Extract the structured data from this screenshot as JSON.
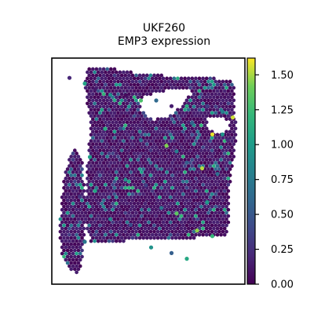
{
  "chart_data": {
    "type": "scatter",
    "subtype": "spatial-expression",
    "title_lines": [
      "UKF260",
      "EMP3 expression"
    ],
    "x_axis": {
      "ticks": false,
      "label": ""
    },
    "y_axis": {
      "ticks": false,
      "label": ""
    },
    "grid": false,
    "colorbar": {
      "colormap": "viridis",
      "range": [
        0,
        1.62
      ],
      "ticks": [
        0.0,
        0.25,
        0.5,
        0.75,
        1.0,
        1.25,
        1.5
      ],
      "tick_labels": [
        "0.00",
        "0.25",
        "0.50",
        "0.75",
        "1.00",
        "1.25",
        "1.50"
      ],
      "placement": "right"
    },
    "colors": {
      "low": "#440154",
      "mid": "#21918c",
      "high": "#fde725"
    },
    "points_sampled": true,
    "points": [
      [
        1,
        1,
        0.2
      ],
      [
        4,
        2,
        1.05
      ],
      [
        6,
        3,
        0.12
      ],
      [
        9,
        4,
        0.9
      ],
      [
        12,
        4,
        0.05
      ],
      [
        15,
        5,
        1.3
      ],
      [
        18,
        5,
        0.62
      ],
      [
        21,
        6,
        0.15
      ],
      [
        24,
        6,
        1.12
      ],
      [
        28,
        6,
        0.33
      ],
      [
        31,
        7,
        0.8
      ],
      [
        33,
        8,
        1.55
      ],
      [
        25,
        9,
        0.58
      ],
      [
        8,
        10,
        1.12
      ],
      [
        11,
        10,
        0.42
      ],
      [
        29,
        11,
        1.59
      ],
      [
        31,
        11,
        0.95
      ],
      [
        32,
        12,
        0.22
      ],
      [
        15,
        12,
        0.65
      ],
      [
        20,
        13,
        1.44
      ],
      [
        22,
        14,
        0.78
      ],
      [
        5,
        15,
        1.02
      ],
      [
        24,
        16,
        0.54
      ],
      [
        27,
        17,
        1.52
      ],
      [
        30,
        18,
        0.66
      ],
      [
        12,
        19,
        0.91
      ],
      [
        16,
        20,
        0.35
      ],
      [
        6,
        21,
        1.07
      ],
      [
        3,
        22,
        0.27
      ],
      [
        28,
        23,
        0.99
      ],
      [
        19,
        24,
        0.72
      ],
      [
        22,
        25,
        1.36
      ],
      [
        9,
        26,
        0.84
      ],
      [
        13,
        27,
        0.44
      ],
      [
        26,
        28,
        1.47
      ],
      [
        29,
        29,
        1.22
      ],
      [
        4,
        30,
        0.73
      ],
      [
        17,
        31,
        0.93
      ],
      [
        21,
        32,
        0.55
      ],
      [
        24,
        33,
        1.09
      ]
    ]
  }
}
